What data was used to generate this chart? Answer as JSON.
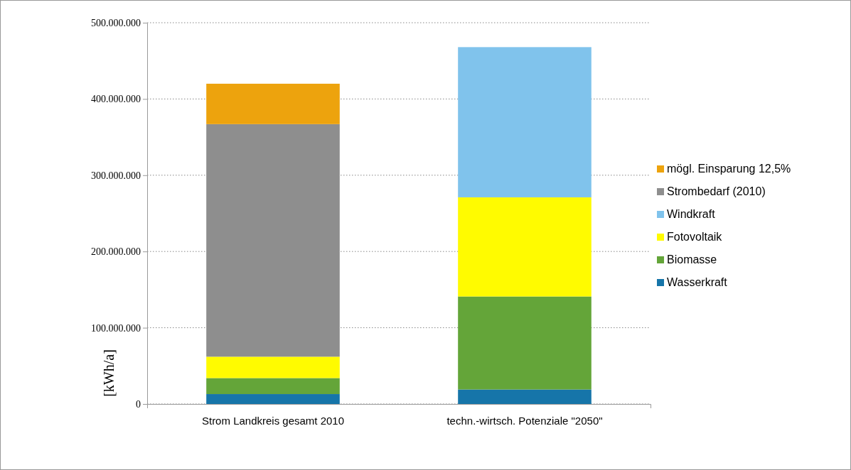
{
  "chart_data": {
    "type": "bar",
    "stacked": true,
    "ylabel": "[kWh/a]",
    "categories": [
      "Strom Landkreis gesamt 2010",
      "techn.-wirtsch. Potenziale \"2050\""
    ],
    "series": [
      {
        "name": "Wasserkraft",
        "color": "#1675a9",
        "values": [
          13000000,
          19000000
        ]
      },
      {
        "name": "Biomasse",
        "color": "#64a539",
        "values": [
          21000000,
          122000000
        ]
      },
      {
        "name": "Fotovoltaik",
        "color": "#fffb00",
        "values": [
          28000000,
          130000000
        ]
      },
      {
        "name": "Windkraft",
        "color": "#80c3ec",
        "values": [
          null,
          197000000
        ]
      },
      {
        "name": "Strombedarf (2010)",
        "color": "#8e8e8e",
        "values": [
          305000000,
          null
        ]
      },
      {
        "name": "mögl. Einsparung 12,5%",
        "color": "#eda30d",
        "values": [
          53000000,
          null
        ]
      }
    ],
    "ylim": [
      0,
      500000000
    ],
    "yticks": [
      {
        "value": 0,
        "label": "0"
      },
      {
        "value": 100000000,
        "label": "100.000.000"
      },
      {
        "value": 200000000,
        "label": "200.000.000"
      },
      {
        "value": 300000000,
        "label": "300.000.000"
      },
      {
        "value": 400000000,
        "label": "400.000.000"
      },
      {
        "value": 500000000,
        "label": "500.000.000"
      }
    ],
    "grid": "y",
    "legend": "right"
  }
}
